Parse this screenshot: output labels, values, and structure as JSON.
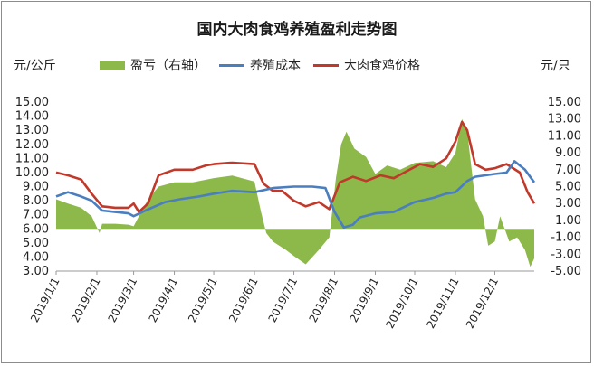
{
  "chart_data": {
    "type": "line",
    "title": "国内大肉食鸡养殖盈利走势图",
    "left_unit": "元/公斤",
    "right_unit": "元/只",
    "legend": [
      {
        "name": "盈亏（右轴）",
        "color": "#8db84a",
        "kind": "area"
      },
      {
        "name": "养殖成本",
        "color": "#4a7ebf",
        "kind": "line"
      },
      {
        "name": "大肉食鸡价格",
        "color": "#c0392b",
        "kind": "line"
      }
    ],
    "left_axis": {
      "min": 3.0,
      "max": 15.0,
      "step": 1.0,
      "ticks": [
        "3.00",
        "4.00",
        "5.00",
        "6.00",
        "7.00",
        "8.00",
        "9.00",
        "10.00",
        "11.00",
        "12.00",
        "13.00",
        "14.00",
        "15.00"
      ]
    },
    "right_axis": {
      "min": -5.0,
      "max": 15.0,
      "step": 2.0,
      "ticks": [
        "-5.00",
        "-3.00",
        "-1.00",
        "1.00",
        "3.00",
        "5.00",
        "7.00",
        "9.00",
        "11.00",
        "13.00",
        "15.00"
      ]
    },
    "x_axis": {
      "start": "2019-01-01",
      "end": "2019-12-31",
      "ticks": [
        "2019/1/1",
        "2019/2/1",
        "2019/3/1",
        "2019/4/1",
        "2019/5/1",
        "2019/6/1",
        "2019/7/1",
        "2019/8/1",
        "2019/9/1",
        "2019/10/1",
        "2019/11/1",
        "2019/12/1"
      ]
    },
    "series": [
      {
        "name": "大肉食鸡价格",
        "axis": "left",
        "points": [
          [
            "2019-01-01",
            10.0
          ],
          [
            "2019-01-10",
            9.8
          ],
          [
            "2019-01-20",
            9.5
          ],
          [
            "2019-01-28",
            8.5
          ],
          [
            "2019-02-05",
            7.6
          ],
          [
            "2019-02-15",
            7.5
          ],
          [
            "2019-02-25",
            7.5
          ],
          [
            "2019-03-01",
            7.8
          ],
          [
            "2019-03-05",
            7.2
          ],
          [
            "2019-03-12",
            7.8
          ],
          [
            "2019-03-20",
            9.8
          ],
          [
            "2019-04-01",
            10.2
          ],
          [
            "2019-04-15",
            10.2
          ],
          [
            "2019-04-25",
            10.5
          ],
          [
            "2019-05-01",
            10.6
          ],
          [
            "2019-05-15",
            10.7
          ],
          [
            "2019-06-01",
            10.6
          ],
          [
            "2019-06-08",
            9.2
          ],
          [
            "2019-06-15",
            8.7
          ],
          [
            "2019-06-22",
            8.7
          ],
          [
            "2019-07-01",
            8.0
          ],
          [
            "2019-07-10",
            7.6
          ],
          [
            "2019-07-20",
            7.9
          ],
          [
            "2019-07-28",
            7.4
          ],
          [
            "2019-08-05",
            9.3
          ],
          [
            "2019-08-15",
            9.7
          ],
          [
            "2019-08-25",
            9.4
          ],
          [
            "2019-09-05",
            9.8
          ],
          [
            "2019-09-15",
            9.6
          ],
          [
            "2019-09-25",
            10.1
          ],
          [
            "2019-10-05",
            10.6
          ],
          [
            "2019-10-15",
            10.4
          ],
          [
            "2019-10-25",
            11.0
          ],
          [
            "2019-11-01",
            12.2
          ],
          [
            "2019-11-06",
            13.6
          ],
          [
            "2019-11-10",
            13.0
          ],
          [
            "2019-11-16",
            10.6
          ],
          [
            "2019-11-24",
            10.2
          ],
          [
            "2019-12-01",
            10.3
          ],
          [
            "2019-12-10",
            10.6
          ],
          [
            "2019-12-20",
            10.0
          ],
          [
            "2019-12-26",
            8.6
          ],
          [
            "2019-12-31",
            7.8
          ]
        ]
      },
      {
        "name": "养殖成本",
        "axis": "left",
        "points": [
          [
            "2019-01-01",
            8.3
          ],
          [
            "2019-01-10",
            8.6
          ],
          [
            "2019-01-20",
            8.3
          ],
          [
            "2019-01-28",
            8.0
          ],
          [
            "2019-02-05",
            7.3
          ],
          [
            "2019-02-15",
            7.2
          ],
          [
            "2019-02-25",
            7.1
          ],
          [
            "2019-03-01",
            6.9
          ],
          [
            "2019-03-10",
            7.3
          ],
          [
            "2019-03-25",
            7.9
          ],
          [
            "2019-04-05",
            8.1
          ],
          [
            "2019-04-20",
            8.3
          ],
          [
            "2019-05-01",
            8.5
          ],
          [
            "2019-05-15",
            8.7
          ],
          [
            "2019-06-01",
            8.6
          ],
          [
            "2019-06-15",
            8.9
          ],
          [
            "2019-07-01",
            9.0
          ],
          [
            "2019-07-15",
            9.0
          ],
          [
            "2019-07-25",
            8.9
          ],
          [
            "2019-08-01",
            7.2
          ],
          [
            "2019-08-08",
            6.1
          ],
          [
            "2019-08-15",
            6.3
          ],
          [
            "2019-08-20",
            6.8
          ],
          [
            "2019-09-01",
            7.1
          ],
          [
            "2019-09-15",
            7.2
          ],
          [
            "2019-10-01",
            7.9
          ],
          [
            "2019-10-15",
            8.2
          ],
          [
            "2019-10-25",
            8.5
          ],
          [
            "2019-11-01",
            8.6
          ],
          [
            "2019-11-10",
            9.4
          ],
          [
            "2019-11-16",
            9.7
          ],
          [
            "2019-12-01",
            9.9
          ],
          [
            "2019-12-10",
            10.0
          ],
          [
            "2019-12-16",
            10.8
          ],
          [
            "2019-12-24",
            10.2
          ],
          [
            "2019-12-31",
            9.3
          ]
        ]
      },
      {
        "name": "盈亏（右轴）",
        "axis": "right",
        "points": [
          [
            "2019-01-01",
            3.5
          ],
          [
            "2019-01-10",
            3.0
          ],
          [
            "2019-01-20",
            2.5
          ],
          [
            "2019-01-28",
            1.5
          ],
          [
            "2019-02-03",
            -0.5
          ],
          [
            "2019-02-05",
            0.6
          ],
          [
            "2019-02-15",
            0.6
          ],
          [
            "2019-02-25",
            0.5
          ],
          [
            "2019-03-01",
            0.3
          ],
          [
            "2019-03-05",
            1.5
          ],
          [
            "2019-03-12",
            3.5
          ],
          [
            "2019-03-20",
            5.0
          ],
          [
            "2019-04-01",
            5.5
          ],
          [
            "2019-04-15",
            5.5
          ],
          [
            "2019-05-01",
            6.0
          ],
          [
            "2019-05-15",
            6.3
          ],
          [
            "2019-06-01",
            5.6
          ],
          [
            "2019-06-06",
            2.0
          ],
          [
            "2019-06-10",
            -0.5
          ],
          [
            "2019-06-15",
            -1.5
          ],
          [
            "2019-06-25",
            -2.5
          ],
          [
            "2019-07-01",
            -3.2
          ],
          [
            "2019-07-10",
            -4.2
          ],
          [
            "2019-07-20",
            -2.5
          ],
          [
            "2019-07-28",
            -1.0
          ],
          [
            "2019-08-02",
            6.0
          ],
          [
            "2019-08-06",
            10.0
          ],
          [
            "2019-08-10",
            11.5
          ],
          [
            "2019-08-16",
            9.5
          ],
          [
            "2019-08-25",
            8.5
          ],
          [
            "2019-09-01",
            6.5
          ],
          [
            "2019-09-10",
            7.5
          ],
          [
            "2019-09-20",
            7.0
          ],
          [
            "2019-10-01",
            7.8
          ],
          [
            "2019-10-15",
            8.0
          ],
          [
            "2019-10-25",
            7.3
          ],
          [
            "2019-11-01",
            9.0
          ],
          [
            "2019-11-06",
            13.0
          ],
          [
            "2019-11-10",
            11.5
          ],
          [
            "2019-11-16",
            3.5
          ],
          [
            "2019-11-22",
            1.5
          ],
          [
            "2019-11-26",
            -2.0
          ],
          [
            "2019-12-01",
            -1.5
          ],
          [
            "2019-12-05",
            1.5
          ],
          [
            "2019-12-12",
            -1.5
          ],
          [
            "2019-12-18",
            -1.0
          ],
          [
            "2019-12-24",
            -2.5
          ],
          [
            "2019-12-28",
            -4.5
          ],
          [
            "2019-12-31",
            -3.5
          ]
        ]
      }
    ]
  }
}
